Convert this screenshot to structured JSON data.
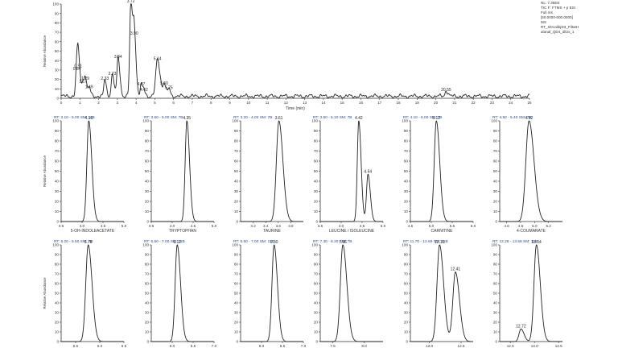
{
  "info_box": [
    "NL: 7.35E8",
    "TIC F: FTMS + p ESI",
    "Full ms",
    "[50.0000-600.0000]",
    "MS",
    "RT_shrcalibjD3_FiltatH",
    "alanal_QD4_dil2x_1"
  ],
  "chart_data": [
    {
      "type": "line",
      "role": "tic",
      "xlabel": "Time (min)",
      "ylabel": "Relative Abundance",
      "xlim": [
        0,
        25
      ],
      "ylim": [
        0,
        100
      ],
      "xticks": [
        "0",
        "1",
        "2",
        "3",
        "4",
        "5",
        "6",
        "7",
        "8",
        "9",
        "10",
        "11",
        "12",
        "13",
        "14",
        "15",
        "16",
        "17",
        "18",
        "19",
        "20",
        "21",
        "22",
        "23",
        "24",
        "25"
      ],
      "yticks": [
        "0",
        "10",
        "20",
        "30",
        "40",
        "50",
        "60",
        "70",
        "80",
        "90",
        "100"
      ],
      "peaks": [
        {
          "x": 0.84,
          "y": 28,
          "w": 0.06,
          "label": "0.84"
        },
        {
          "x": 0.91,
          "y": 31,
          "w": 0.07,
          "label": "0.91"
        },
        {
          "x": 1.17,
          "y": 15,
          "w": 0.05,
          "label": "1.17"
        },
        {
          "x": 1.29,
          "y": 18,
          "w": 0.05,
          "label": "1.29"
        },
        {
          "x": 1.49,
          "y": 9,
          "w": 0.05,
          "label": "1.49"
        },
        {
          "x": 2.33,
          "y": 18,
          "w": 0.05,
          "label": "2.33"
        },
        {
          "x": 2.73,
          "y": 23,
          "w": 0.06,
          "label": "2.73"
        },
        {
          "x": 3.04,
          "y": 41,
          "w": 0.06,
          "label": "3.04"
        },
        {
          "x": 3.72,
          "y": 100,
          "w": 0.06,
          "label": "3.72"
        },
        {
          "x": 3.9,
          "y": 66,
          "w": 0.06,
          "label": "3.90"
        },
        {
          "x": 4.27,
          "y": 12,
          "w": 0.05,
          "label": "4.27"
        },
        {
          "x": 4.42,
          "y": 6,
          "w": 0.05,
          "label": "4.42"
        },
        {
          "x": 5.14,
          "y": 39,
          "w": 0.09,
          "label": "5.14"
        },
        {
          "x": 5.5,
          "y": 13,
          "w": 0.06,
          "label": "5.50"
        },
        {
          "x": 5.75,
          "y": 8,
          "w": 0.05,
          "label": "5.75"
        },
        {
          "x": 20.55,
          "y": 6,
          "w": 0.06,
          "label": "20.55"
        }
      ]
    },
    {
      "type": "line",
      "role": "xic",
      "header": "RT: 3.10 - 5.00  SM: 11B",
      "compound": "5-OH-INDOLEACETATE",
      "xlim": [
        3.5,
        5.0
      ],
      "xticks": [
        "3.5",
        "4.0",
        "4.5",
        "5.0"
      ],
      "yticks": [
        "0",
        "10",
        "20",
        "30",
        "40",
        "50",
        "60",
        "70",
        "80",
        "90",
        "100"
      ],
      "ylabel": "Relative Abundance",
      "peaks": [
        {
          "x": 4.16,
          "y": 100,
          "w": 0.045,
          "label": "4.16"
        }
      ]
    },
    {
      "type": "line",
      "role": "xic",
      "header": "RT: 3.50 - 5.00  SM: 7B",
      "compound": "TRYPTOPHAN",
      "xlim": [
        3.5,
        5.0
      ],
      "xticks": [
        "3.5",
        "4.0",
        "4.5",
        "5.0"
      ],
      "yticks": [
        "0",
        "10",
        "20",
        "30",
        "40",
        "50",
        "60",
        "70",
        "80",
        "90",
        "100"
      ],
      "ylabel": "",
      "peaks": [
        {
          "x": 4.35,
          "y": 100,
          "w": 0.04,
          "label": "4.35"
        }
      ]
    },
    {
      "type": "line",
      "role": "xic",
      "header": "RT: 3.20 - 4.00  SM: 7B",
      "compound": "TAURINE",
      "xlim": [
        3.0,
        4.0
      ],
      "xticks": [
        "3.2",
        "3.4",
        "3.6",
        "3.8"
      ],
      "yticks": [
        "0",
        "10",
        "20",
        "30",
        "40",
        "50",
        "60",
        "70",
        "80",
        "90",
        "100"
      ],
      "ylabel": "",
      "peaks": [
        {
          "x": 3.61,
          "y": 100,
          "w": 0.04,
          "label": "3.61"
        }
      ]
    },
    {
      "type": "line",
      "role": "xic",
      "header": "RT: 3.50 - 5.10  SM: 7B",
      "compound": "LEUCINE / ISOLEUCINE",
      "xlim": [
        3.5,
        5.0
      ],
      "xticks": [
        "3.5",
        "4.0",
        "4.5",
        "5.0"
      ],
      "yticks": [
        "0",
        "10",
        "20",
        "30",
        "40",
        "50",
        "60",
        "70",
        "80",
        "90",
        "100"
      ],
      "ylabel": "",
      "peaks": [
        {
          "x": 4.42,
          "y": 100,
          "w": 0.035,
          "label": "4.42"
        },
        {
          "x": 4.64,
          "y": 47,
          "w": 0.035,
          "label": "4.64"
        }
      ]
    },
    {
      "type": "line",
      "role": "xic",
      "header": "RT: 4.10 - 6.00  SM: 7B",
      "compound": "CARNITINE",
      "xlim": [
        4.5,
        6.0
      ],
      "xticks": [
        "4.5",
        "5.0",
        "5.5",
        "6.0"
      ],
      "yticks": [
        "0",
        "10",
        "20",
        "30",
        "40",
        "50",
        "60",
        "70",
        "80",
        "90",
        "100"
      ],
      "ylabel": "",
      "peaks": [
        {
          "x": 5.12,
          "y": 100,
          "w": 0.05,
          "label": "5.12"
        }
      ]
    },
    {
      "type": "line",
      "role": "xic",
      "header": "RT: 4.50 - 5.40  SM: 7B",
      "compound": "4-COUMARATE",
      "xlim": [
        4.5,
        5.4
      ],
      "xticks": [
        "4.6",
        "4.8",
        "5.0",
        "5.2"
      ],
      "yticks": [
        "0",
        "10",
        "20",
        "30",
        "40",
        "50",
        "60",
        "70",
        "80",
        "90",
        "100"
      ],
      "ylabel": "",
      "peaks": [
        {
          "x": 4.92,
          "y": 100,
          "w": 0.045,
          "label": "4.92"
        }
      ]
    },
    {
      "type": "line",
      "role": "xic",
      "header": "RT: 5.20 - 6.50  SM: 7B",
      "compound": "",
      "xlim": [
        5.2,
        6.5
      ],
      "xticks": [
        "5.5",
        "6.0",
        "6.5"
      ],
      "yticks": [
        "0",
        "10",
        "20",
        "30",
        "40",
        "50",
        "60",
        "70",
        "80",
        "90",
        "100"
      ],
      "ylabel": "Relative Abundance",
      "peaks": [
        {
          "x": 5.76,
          "y": 100,
          "w": 0.05,
          "label": "5.76"
        }
      ]
    },
    {
      "type": "line",
      "role": "xic",
      "header": "RT: 5.50 - 7.00  SM: 11B",
      "compound": "",
      "xlim": [
        5.5,
        7.0
      ],
      "xticks": [
        "6.0",
        "6.5",
        "7.0"
      ],
      "yticks": [
        "0",
        "10",
        "20",
        "30",
        "40",
        "50",
        "60",
        "70",
        "80",
        "90",
        "100"
      ],
      "ylabel": "",
      "peaks": [
        {
          "x": 6.12,
          "y": 100,
          "w": 0.05,
          "label": "6.12"
        }
      ]
    },
    {
      "type": "line",
      "role": "xic",
      "header": "RT: 5.50 - 7.00  SM: 11B",
      "compound": "",
      "xlim": [
        5.5,
        7.0
      ],
      "xticks": [
        "6.0",
        "6.5",
        "7.0"
      ],
      "yticks": [
        "0",
        "10",
        "20",
        "30",
        "40",
        "50",
        "60",
        "70",
        "80",
        "90",
        "100"
      ],
      "ylabel": "",
      "peaks": [
        {
          "x": 6.3,
          "y": 100,
          "w": 0.05,
          "label": "6.30"
        }
      ]
    },
    {
      "type": "line",
      "role": "xic",
      "header": "RT: 7.30 - 8.30  SM: 7B",
      "compound": "",
      "xlim": [
        7.3,
        8.3
      ],
      "xticks": [
        "7.5",
        "8.0"
      ],
      "yticks": [
        "0",
        "10",
        "20",
        "30",
        "40",
        "50",
        "60",
        "70",
        "80",
        "90",
        "100"
      ],
      "ylabel": "",
      "peaks": [
        {
          "x": 7.66,
          "y": 100,
          "w": 0.04,
          "label": "7.66"
        }
      ]
    },
    {
      "type": "line",
      "role": "xic",
      "header": "RT: 11.70 - 12.69  SM: 11B",
      "compound": "",
      "xlim": [
        11.7,
        12.69
      ],
      "xticks": [
        "12.0",
        "12.5"
      ],
      "yticks": [
        "0",
        "10",
        "20",
        "30",
        "40",
        "50",
        "60",
        "70",
        "80",
        "90",
        "100"
      ],
      "ylabel": "",
      "peaks": [
        {
          "x": 12.16,
          "y": 100,
          "w": 0.04,
          "label": "12.16"
        },
        {
          "x": 12.41,
          "y": 72,
          "w": 0.04,
          "label": "12.41"
        }
      ]
    },
    {
      "type": "line",
      "role": "xic",
      "header": "RT: 12.28 - 13.58  SM: 11B",
      "compound": "",
      "xlim": [
        12.28,
        13.58
      ],
      "xticks": [
        "12.5",
        "13.0",
        "13.5"
      ],
      "yticks": [
        "0",
        "10",
        "20",
        "30",
        "40",
        "50",
        "60",
        "70",
        "80",
        "90",
        "100"
      ],
      "ylabel": "",
      "peaks": [
        {
          "x": 12.72,
          "y": 13,
          "w": 0.04,
          "label": "12.72"
        },
        {
          "x": 13.04,
          "y": 100,
          "w": 0.05,
          "label": "13.04"
        }
      ]
    }
  ]
}
